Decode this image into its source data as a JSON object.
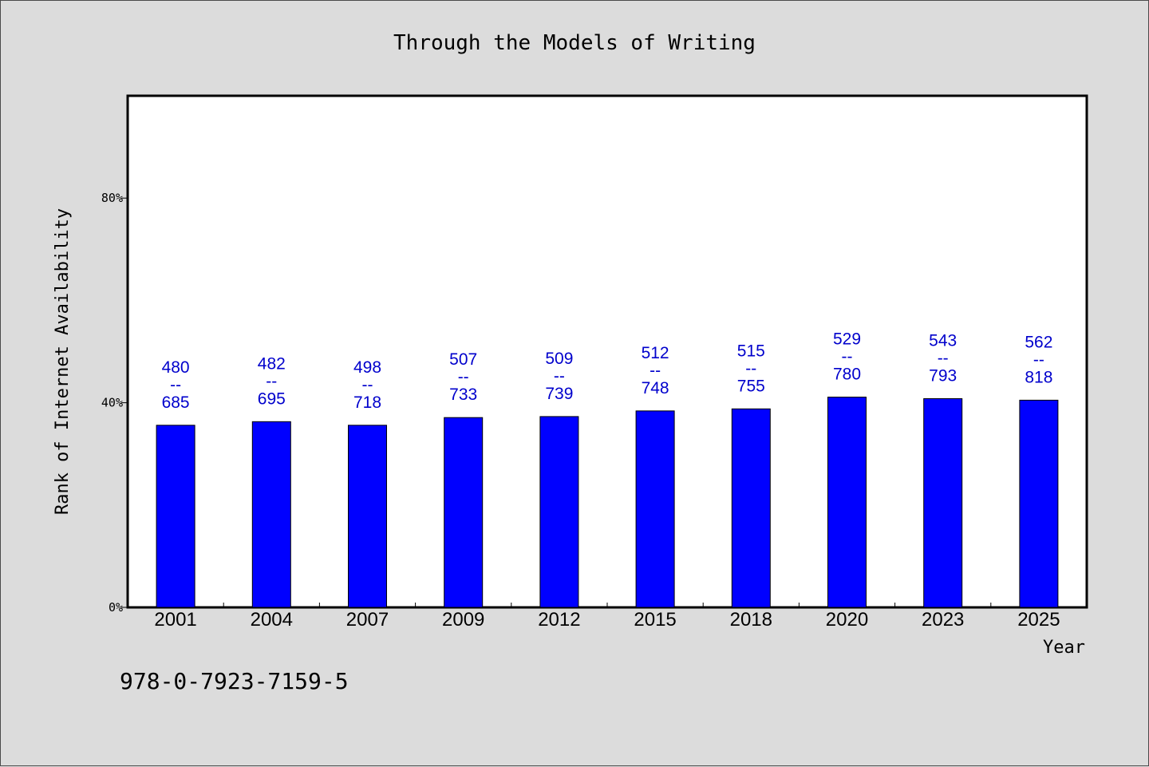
{
  "chart_data": {
    "type": "bar",
    "title": "Through the Models of Writing",
    "xlabel": "Year",
    "ylabel": "Rank of Internet Availability",
    "categories": [
      "2001",
      "2004",
      "2007",
      "2009",
      "2012",
      "2015",
      "2018",
      "2020",
      "2023",
      "2025"
    ],
    "values": [
      35.6,
      36.3,
      35.6,
      37.1,
      37.3,
      38.4,
      38.8,
      41.1,
      40.8,
      40.5
    ],
    "data_labels": [
      [
        "480",
        "--",
        "685"
      ],
      [
        "482",
        "--",
        "695"
      ],
      [
        "498",
        "--",
        "718"
      ],
      [
        "507",
        "--",
        "733"
      ],
      [
        "509",
        "--",
        "739"
      ],
      [
        "512",
        "--",
        "748"
      ],
      [
        "515",
        "--",
        "755"
      ],
      [
        "529",
        "--",
        "780"
      ],
      [
        "543",
        "--",
        "793"
      ],
      [
        "562",
        "--",
        "818"
      ]
    ],
    "yticks": [
      0,
      40,
      80
    ],
    "ytick_labels": [
      "0%",
      "40%",
      "80%"
    ],
    "ylim": [
      0,
      100
    ],
    "grid": false,
    "legend": "none",
    "bar_color": "#0000ff",
    "label_color": "#0000cc",
    "background": "#dcdcdc",
    "plot_background": "#ffffff"
  },
  "footer": {
    "isbn": "978-0-7923-7159-5"
  }
}
